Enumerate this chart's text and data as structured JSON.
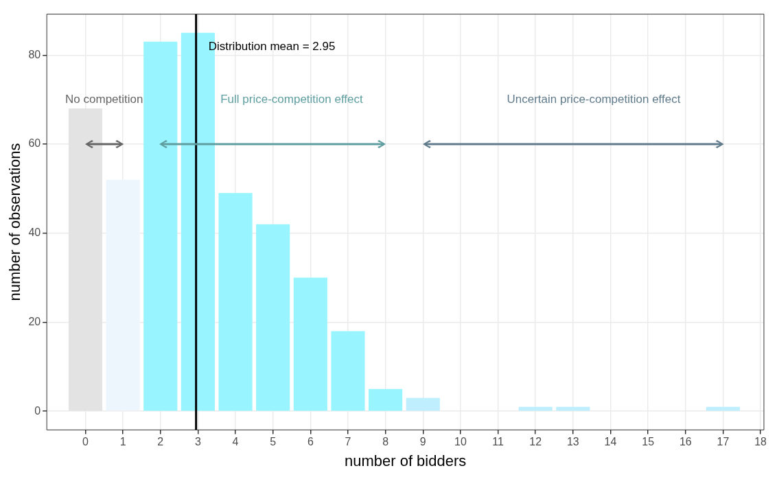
{
  "chart_data": {
    "type": "bar",
    "xlabel": "number of bidders",
    "ylabel": "number of observations",
    "x": [
      0,
      1,
      2,
      3,
      4,
      5,
      6,
      7,
      8,
      9,
      12,
      13,
      17
    ],
    "values": [
      68,
      52,
      83,
      85,
      49,
      42,
      30,
      18,
      5,
      3,
      1,
      1,
      1
    ],
    "colors": [
      "#e3e3e3",
      "#eef6fd",
      "#98f5ff",
      "#98f5ff",
      "#98f5ff",
      "#98f5ff",
      "#98f5ff",
      "#98f5ff",
      "#98f5ff",
      "#bfefff",
      "#bfefff",
      "#bfefff",
      "#bfefff"
    ],
    "xlim": [
      -1.03,
      18.09
    ],
    "xticks": [
      0,
      1,
      2,
      3,
      4,
      5,
      6,
      7,
      8,
      9,
      10,
      11,
      12,
      13,
      14,
      15,
      16,
      17,
      18
    ],
    "ylim": [
      -4.2,
      89.2
    ],
    "yticks": [
      0,
      20,
      40,
      60,
      80
    ],
    "grid": true,
    "ref_lines": [
      {
        "axis": "x",
        "value": 2.95,
        "label": "Distribution mean = 2.95",
        "color": "#000000"
      }
    ],
    "annotations": [
      "No competition",
      "Full price-competition effect",
      "Uncertain price-competition effect"
    ]
  }
}
